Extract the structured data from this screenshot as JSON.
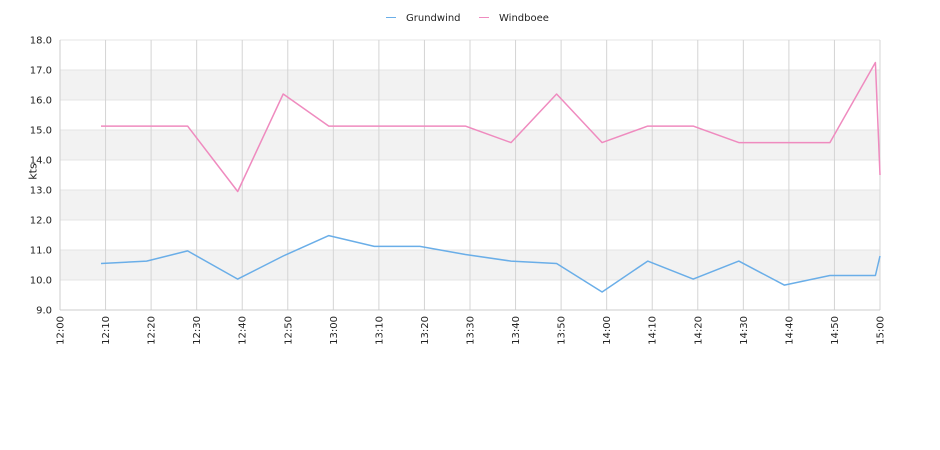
{
  "chart_data": {
    "type": "line",
    "ylabel": "kts",
    "xlabel": "",
    "title": "",
    "ylim": [
      9.0,
      18.0
    ],
    "y_ticks": [
      "9.0",
      "10.0",
      "11.0",
      "12.0",
      "13.0",
      "14.0",
      "15.0",
      "16.0",
      "17.0",
      "18.0"
    ],
    "x_ticks": [
      "12:00",
      "12:10",
      "12:20",
      "12:30",
      "12:40",
      "12:50",
      "13:00",
      "13:10",
      "13:20",
      "13:30",
      "13:40",
      "13:50",
      "14:00",
      "14:10",
      "14:20",
      "14:30",
      "14:40",
      "14:50",
      "15:00"
    ],
    "x_range": [
      "12:00",
      "15:00"
    ],
    "grid": true,
    "banded_background": true,
    "legend_position": "top-center",
    "series": [
      {
        "name": "Grundwind",
        "color": "#6aaee8",
        "points": [
          [
            "12:09",
            10.55
          ],
          [
            "12:19",
            10.63
          ],
          [
            "12:28",
            10.97
          ],
          [
            "12:39",
            10.03
          ],
          [
            "12:49",
            10.8
          ],
          [
            "12:59",
            11.48
          ],
          [
            "13:09",
            11.12
          ],
          [
            "13:19",
            11.12
          ],
          [
            "13:29",
            10.85
          ],
          [
            "13:39",
            10.63
          ],
          [
            "13:49",
            10.55
          ],
          [
            "13:59",
            9.6
          ],
          [
            "14:09",
            10.63
          ],
          [
            "14:19",
            10.03
          ],
          [
            "14:29",
            10.63
          ],
          [
            "14:39",
            9.83
          ],
          [
            "14:49",
            10.15
          ],
          [
            "14:59",
            10.15
          ],
          [
            "15:00",
            10.8
          ]
        ]
      },
      {
        "name": "Windboee",
        "color": "#ef8bbf",
        "points": [
          [
            "12:09",
            15.13
          ],
          [
            "12:19",
            15.13
          ],
          [
            "12:28",
            15.13
          ],
          [
            "12:39",
            12.95
          ],
          [
            "12:49",
            16.2
          ],
          [
            "12:59",
            15.13
          ],
          [
            "13:09",
            15.13
          ],
          [
            "13:19",
            15.13
          ],
          [
            "13:29",
            15.13
          ],
          [
            "13:39",
            14.58
          ],
          [
            "13:49",
            16.2
          ],
          [
            "13:59",
            14.58
          ],
          [
            "14:09",
            15.13
          ],
          [
            "14:19",
            15.13
          ],
          [
            "14:29",
            14.58
          ],
          [
            "14:39",
            14.58
          ],
          [
            "14:49",
            14.58
          ],
          [
            "14:59",
            17.25
          ],
          [
            "15:00",
            13.5
          ]
        ]
      }
    ]
  }
}
